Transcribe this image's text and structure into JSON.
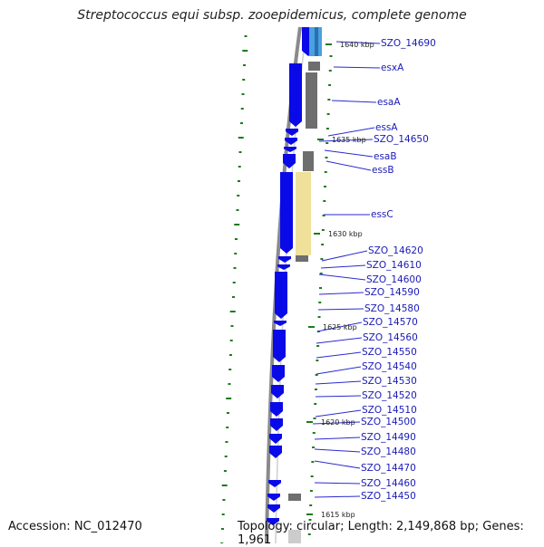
{
  "title": "Streptococcus equi subsp. zooepidemicus, complete genome",
  "footer": {
    "accession": "Accession: NC_012470",
    "topology": "Topology: circular; Length: 2,149,868 bp; Genes: 1,961"
  },
  "colors": {
    "gene_forward": "#0a0ae8",
    "label_text": "#1a1ab8",
    "leader_line": "#2a2ad0",
    "tick": "#1e7a1e",
    "backbone": "#8a8a8a",
    "cds_gray": "#6e6e6e",
    "cds_yellow": "#efe09a",
    "cds_lightblue": "#4aa0e0"
  },
  "scale_labels": [
    "1640 kbp",
    "1635 kbp",
    "1630 kbp",
    "1625 kbp",
    "1620 kbp",
    "1615 kbp"
  ],
  "gene_labels": [
    "SZO_14690",
    "esxA",
    "esaA",
    "essA",
    "SZO_14650",
    "esaB",
    "essB",
    "essC",
    "SZO_14620",
    "SZO_14610",
    "SZO_14600",
    "SZO_14590",
    "SZO_14580",
    "SZO_14570",
    "SZO_14560",
    "SZO_14550",
    "SZO_14540",
    "SZO_14530",
    "SZO_14520",
    "SZO_14510",
    "SZO_14500",
    "SZO_14490",
    "SZO_14480",
    "SZO_14470",
    "SZO_14460",
    "SZO_14450"
  ]
}
